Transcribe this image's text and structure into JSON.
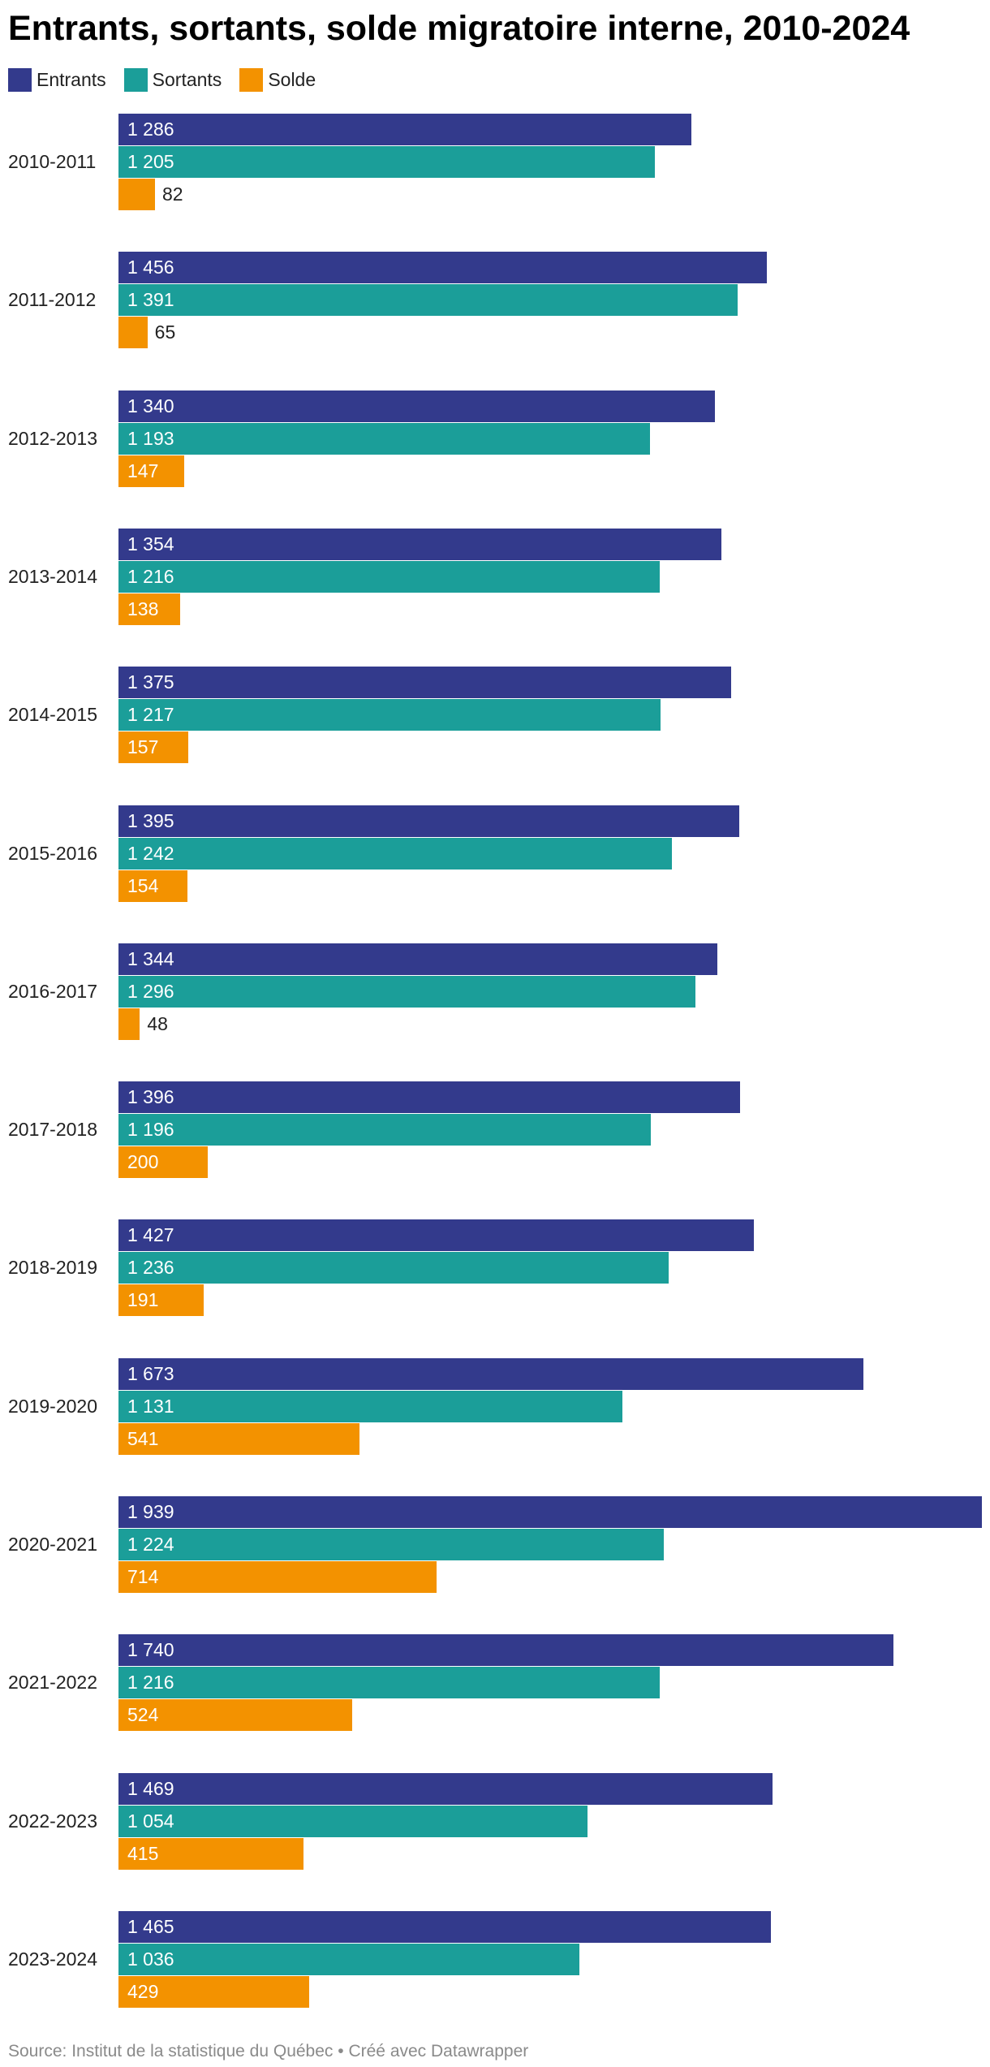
{
  "chart_data": {
    "type": "bar",
    "orientation": "horizontal",
    "title": "Entrants, sortants, solde migratoire interne, 2010-2024",
    "categories": [
      "2010-2011",
      "2011-2012",
      "2012-2013",
      "2013-2014",
      "2014-2015",
      "2015-2016",
      "2016-2017",
      "2017-2018",
      "2018-2019",
      "2019-2020",
      "2020-2021",
      "2021-2022",
      "2022-2023",
      "2023-2024"
    ],
    "series": [
      {
        "name": "Entrants",
        "color": "#333a8c",
        "values": [
          1286,
          1456,
          1340,
          1354,
          1375,
          1395,
          1344,
          1396,
          1427,
          1673,
          1939,
          1740,
          1469,
          1465
        ]
      },
      {
        "name": "Sortants",
        "color": "#1b9e99",
        "values": [
          1205,
          1391,
          1193,
          1216,
          1217,
          1242,
          1296,
          1196,
          1236,
          1131,
          1224,
          1216,
          1054,
          1036
        ]
      },
      {
        "name": "Solde",
        "color": "#f39200",
        "values": [
          82,
          65,
          147,
          138,
          157,
          154,
          48,
          200,
          191,
          541,
          714,
          524,
          415,
          429
        ]
      }
    ],
    "xlim": [
      0,
      1939
    ],
    "grid": false,
    "value_labels": true,
    "legend_position": "top-left"
  },
  "footer": {
    "source_label": "Source:",
    "source_name": "Institut de la statistique du Québec",
    "separator": "•",
    "credit": "Créé avec Datawrapper"
  }
}
